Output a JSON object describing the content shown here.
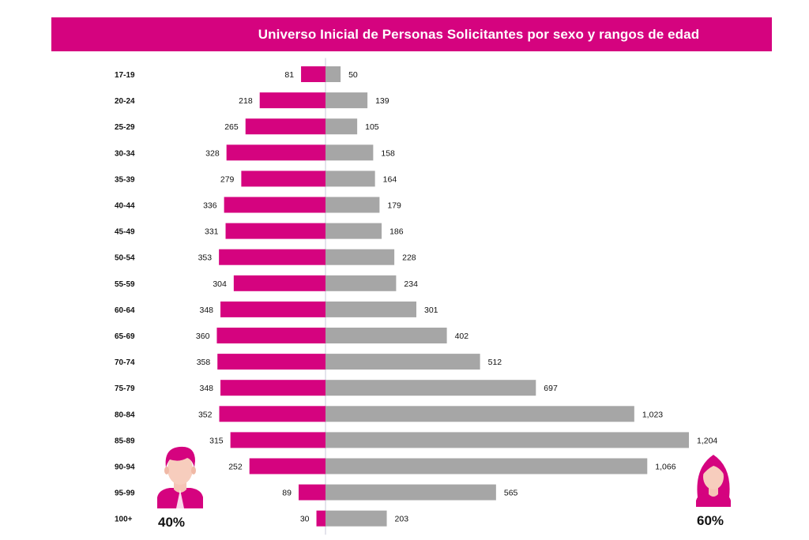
{
  "header": {
    "title": "Universo Inicial de Personas Solicitantes por sexo y rangos de edad"
  },
  "colors": {
    "accent": "#d5037f",
    "male_bar": "#d5037f",
    "female_bar": "#a6a6a6",
    "axis_line": "#c8c8d8"
  },
  "legend": {
    "male_percent": "40%",
    "female_percent": "60%",
    "male_icon": "man-avatar-icon",
    "female_icon": "woman-avatar-icon"
  },
  "chart_data": {
    "type": "bar",
    "orientation": "horizontal-butterfly",
    "title": "Universo Inicial de Personas Solicitantes por sexo y rangos de edad",
    "categories": [
      "17-19",
      "20-24",
      "25-29",
      "30-34",
      "35-39",
      "40-44",
      "45-49",
      "50-54",
      "55-59",
      "60-64",
      "65-69",
      "70-74",
      "75-79",
      "80-84",
      "85-89",
      "90-94",
      "95-99",
      "100+"
    ],
    "series": [
      {
        "values": [
          81,
          218,
          265,
          328,
          279,
          336,
          331,
          353,
          304,
          348,
          360,
          358,
          348,
          352,
          315,
          252,
          89,
          30
        ],
        "labels": [
          "81",
          "218",
          "265",
          "328",
          "279",
          "336",
          "331",
          "353",
          "304",
          "348",
          "360",
          "358",
          "348",
          "352",
          "315",
          "252",
          "89",
          "30"
        ]
      },
      {
        "values": [
          50,
          139,
          105,
          158,
          164,
          179,
          186,
          228,
          234,
          301,
          402,
          512,
          697,
          1023,
          1204,
          1066,
          565,
          203
        ],
        "labels": [
          "50",
          "139",
          "105",
          "158",
          "164",
          "179",
          "186",
          "228",
          "234",
          "301",
          "402",
          "512",
          "697",
          "1,023",
          "1,204",
          "1,066",
          "565",
          "203"
        ]
      }
    ],
    "grid": false
  }
}
